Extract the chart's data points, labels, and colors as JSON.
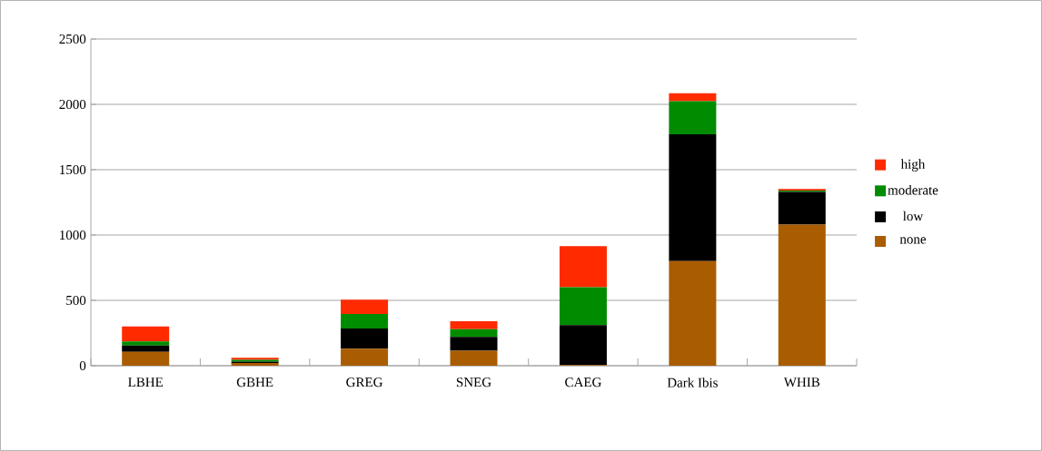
{
  "chart_data": {
    "type": "bar",
    "stacked": true,
    "categories": [
      "LBHE",
      "GBHE",
      "GREG",
      "SNEG",
      "CAEG",
      "Dark Ibis",
      "WHIB"
    ],
    "series": [
      {
        "name": "none",
        "color": "#a95c00",
        "values": [
          105,
          20,
          130,
          115,
          5,
          800,
          1080
        ]
      },
      {
        "name": "low",
        "color": "#000000",
        "values": [
          50,
          12,
          155,
          105,
          305,
          970,
          250
        ]
      },
      {
        "name": "moderate",
        "color": "#008c00",
        "values": [
          30,
          13,
          110,
          60,
          290,
          255,
          10
        ]
      },
      {
        "name": "high",
        "color": "#ff2a00",
        "values": [
          115,
          15,
          110,
          60,
          315,
          60,
          13
        ]
      }
    ],
    "ylim": [
      0,
      2500
    ],
    "yticks": [
      0,
      500,
      1000,
      1500,
      2000,
      2500
    ],
    "grid": "y",
    "legend": "right"
  }
}
